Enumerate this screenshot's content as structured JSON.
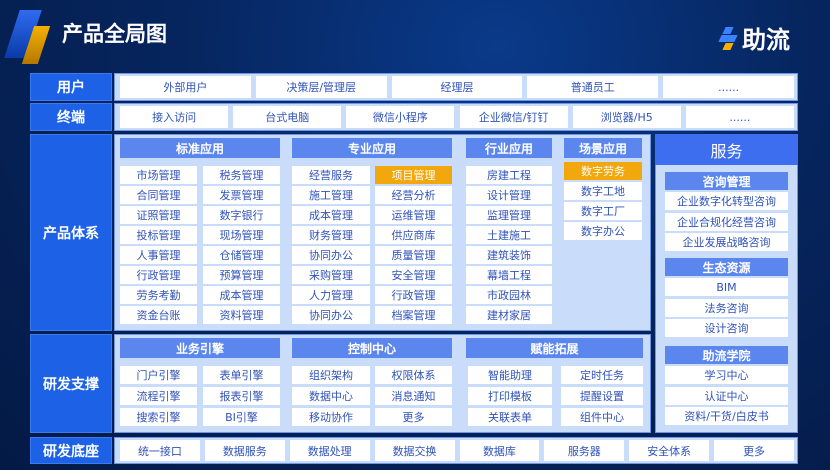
{
  "header": {
    "title": "产品全局图",
    "brand": "助流"
  },
  "colors": {
    "label_bg": "#1d62e6",
    "panel_bg": "#c9ddfa",
    "header_bg": "#5b86ee",
    "highlight": "#f2a70c"
  },
  "rows": {
    "users": {
      "label": "用户",
      "items": [
        "外部用户",
        "决策层/管理层",
        "经理层",
        "普通员工",
        "......"
      ]
    },
    "terminals": {
      "label": "终端",
      "items": [
        "接入访问",
        "台式电脑",
        "微信小程序",
        "企业微信/钉钉",
        "浏览器/H5",
        "......"
      ]
    },
    "product": {
      "label": "产品体系"
    },
    "rnd_support": {
      "label": "研发支撑"
    },
    "rnd_base": {
      "label": "研发底座",
      "items": [
        "统一接口",
        "数据服务",
        "数据处理",
        "数据交换",
        "数据库",
        "服务器",
        "安全体系",
        "更多"
      ]
    }
  },
  "product_groups": [
    {
      "title": "标准应用",
      "items": [
        "市场管理",
        "税务管理",
        "合同管理",
        "发票管理",
        "证照管理",
        "数字银行",
        "投标管理",
        "现场管理",
        "人事管理",
        "仓储管理",
        "行政管理",
        "预算管理",
        "劳务考勤",
        "成本管理",
        "资金台账",
        "资料管理"
      ]
    },
    {
      "title": "专业应用",
      "items": [
        "经营服务",
        "项目管理",
        "施工管理",
        "经营分析",
        "成本管理",
        "运维管理",
        "财务管理",
        "供应商库",
        "协同办公",
        "质量管理",
        "采购管理",
        "安全管理",
        "人力管理",
        "行政管理",
        "协同办公",
        "档案管理"
      ],
      "highlighted": [
        "项目管理"
      ]
    },
    {
      "title": "行业应用",
      "items": [
        "房建工程",
        "设计管理",
        "监理管理",
        "土建施工",
        "建筑装饰",
        "幕墙工程",
        "市政园林",
        "建材家居"
      ]
    },
    {
      "title": "场景应用",
      "items": [
        "数字劳务",
        "数字工地",
        "数字工厂",
        "数字办公"
      ],
      "highlighted": [
        "数字劳务"
      ]
    }
  ],
  "support_groups": [
    {
      "title": "业务引擎",
      "items": [
        "门户引擎",
        "表单引擎",
        "流程引擎",
        "报表引擎",
        "搜索引擎",
        "BI引擎"
      ]
    },
    {
      "title": "控制中心",
      "items": [
        "组织架构",
        "权限体系",
        "数据中心",
        "消息通知",
        "移动协作",
        "更多"
      ]
    },
    {
      "title": "赋能拓展",
      "items": [
        "智能助理",
        "定时任务",
        "打印模板",
        "提醒设置",
        "关联表单",
        "组件中心"
      ]
    }
  ],
  "service": {
    "title": "服务",
    "sections": [
      {
        "title": "咨询管理",
        "items": [
          "企业数字化转型咨询",
          "企业合规化经营咨询",
          "企业发展战略咨询"
        ]
      },
      {
        "title": "生态资源",
        "items": [
          "BIM",
          "法务咨询",
          "设计咨询"
        ]
      },
      {
        "title": "助流学院",
        "items": [
          "学习中心",
          "认证中心",
          "资料/干货/白皮书"
        ]
      }
    ]
  }
}
